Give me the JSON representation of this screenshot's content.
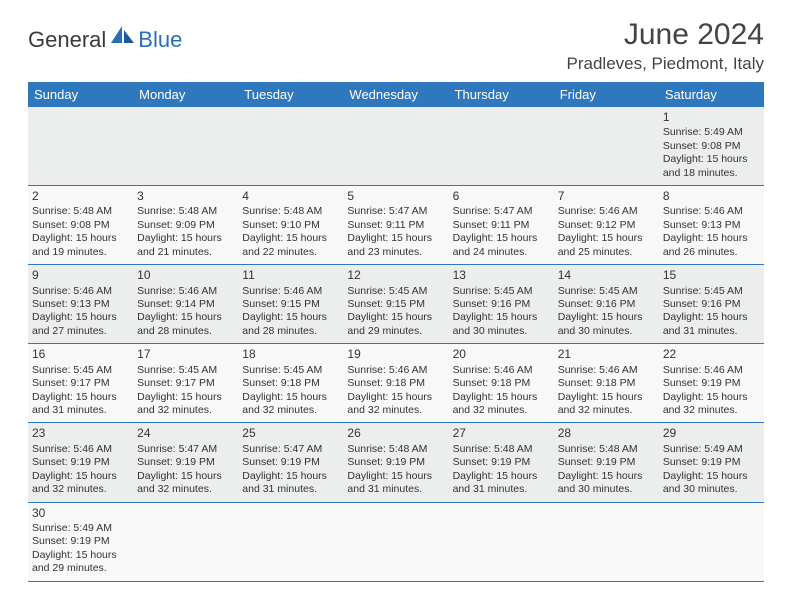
{
  "brand": {
    "part1": "General",
    "part2": "Blue"
  },
  "title": "June 2024",
  "location": "Pradleves, Piedmont, Italy",
  "colors": {
    "header_bg": "#2f78bd",
    "header_fg": "#ffffff",
    "row_a": "#eceded",
    "row_b": "#f8f8f8",
    "divider": "#2f78bd",
    "brand_blue": "#2770b8"
  },
  "weekdays": [
    "Sunday",
    "Monday",
    "Tuesday",
    "Wednesday",
    "Thursday",
    "Friday",
    "Saturday"
  ],
  "weeks": [
    [
      null,
      null,
      null,
      null,
      null,
      null,
      {
        "day": "1",
        "sunrise": "Sunrise: 5:49 AM",
        "sunset": "Sunset: 9:08 PM",
        "daylight1": "Daylight: 15 hours",
        "daylight2": "and 18 minutes."
      }
    ],
    [
      {
        "day": "2",
        "sunrise": "Sunrise: 5:48 AM",
        "sunset": "Sunset: 9:08 PM",
        "daylight1": "Daylight: 15 hours",
        "daylight2": "and 19 minutes."
      },
      {
        "day": "3",
        "sunrise": "Sunrise: 5:48 AM",
        "sunset": "Sunset: 9:09 PM",
        "daylight1": "Daylight: 15 hours",
        "daylight2": "and 21 minutes."
      },
      {
        "day": "4",
        "sunrise": "Sunrise: 5:48 AM",
        "sunset": "Sunset: 9:10 PM",
        "daylight1": "Daylight: 15 hours",
        "daylight2": "and 22 minutes."
      },
      {
        "day": "5",
        "sunrise": "Sunrise: 5:47 AM",
        "sunset": "Sunset: 9:11 PM",
        "daylight1": "Daylight: 15 hours",
        "daylight2": "and 23 minutes."
      },
      {
        "day": "6",
        "sunrise": "Sunrise: 5:47 AM",
        "sunset": "Sunset: 9:11 PM",
        "daylight1": "Daylight: 15 hours",
        "daylight2": "and 24 minutes."
      },
      {
        "day": "7",
        "sunrise": "Sunrise: 5:46 AM",
        "sunset": "Sunset: 9:12 PM",
        "daylight1": "Daylight: 15 hours",
        "daylight2": "and 25 minutes."
      },
      {
        "day": "8",
        "sunrise": "Sunrise: 5:46 AM",
        "sunset": "Sunset: 9:13 PM",
        "daylight1": "Daylight: 15 hours",
        "daylight2": "and 26 minutes."
      }
    ],
    [
      {
        "day": "9",
        "sunrise": "Sunrise: 5:46 AM",
        "sunset": "Sunset: 9:13 PM",
        "daylight1": "Daylight: 15 hours",
        "daylight2": "and 27 minutes."
      },
      {
        "day": "10",
        "sunrise": "Sunrise: 5:46 AM",
        "sunset": "Sunset: 9:14 PM",
        "daylight1": "Daylight: 15 hours",
        "daylight2": "and 28 minutes."
      },
      {
        "day": "11",
        "sunrise": "Sunrise: 5:46 AM",
        "sunset": "Sunset: 9:15 PM",
        "daylight1": "Daylight: 15 hours",
        "daylight2": "and 28 minutes."
      },
      {
        "day": "12",
        "sunrise": "Sunrise: 5:45 AM",
        "sunset": "Sunset: 9:15 PM",
        "daylight1": "Daylight: 15 hours",
        "daylight2": "and 29 minutes."
      },
      {
        "day": "13",
        "sunrise": "Sunrise: 5:45 AM",
        "sunset": "Sunset: 9:16 PM",
        "daylight1": "Daylight: 15 hours",
        "daylight2": "and 30 minutes."
      },
      {
        "day": "14",
        "sunrise": "Sunrise: 5:45 AM",
        "sunset": "Sunset: 9:16 PM",
        "daylight1": "Daylight: 15 hours",
        "daylight2": "and 30 minutes."
      },
      {
        "day": "15",
        "sunrise": "Sunrise: 5:45 AM",
        "sunset": "Sunset: 9:16 PM",
        "daylight1": "Daylight: 15 hours",
        "daylight2": "and 31 minutes."
      }
    ],
    [
      {
        "day": "16",
        "sunrise": "Sunrise: 5:45 AM",
        "sunset": "Sunset: 9:17 PM",
        "daylight1": "Daylight: 15 hours",
        "daylight2": "and 31 minutes."
      },
      {
        "day": "17",
        "sunrise": "Sunrise: 5:45 AM",
        "sunset": "Sunset: 9:17 PM",
        "daylight1": "Daylight: 15 hours",
        "daylight2": "and 32 minutes."
      },
      {
        "day": "18",
        "sunrise": "Sunrise: 5:45 AM",
        "sunset": "Sunset: 9:18 PM",
        "daylight1": "Daylight: 15 hours",
        "daylight2": "and 32 minutes."
      },
      {
        "day": "19",
        "sunrise": "Sunrise: 5:46 AM",
        "sunset": "Sunset: 9:18 PM",
        "daylight1": "Daylight: 15 hours",
        "daylight2": "and 32 minutes."
      },
      {
        "day": "20",
        "sunrise": "Sunrise: 5:46 AM",
        "sunset": "Sunset: 9:18 PM",
        "daylight1": "Daylight: 15 hours",
        "daylight2": "and 32 minutes."
      },
      {
        "day": "21",
        "sunrise": "Sunrise: 5:46 AM",
        "sunset": "Sunset: 9:18 PM",
        "daylight1": "Daylight: 15 hours",
        "daylight2": "and 32 minutes."
      },
      {
        "day": "22",
        "sunrise": "Sunrise: 5:46 AM",
        "sunset": "Sunset: 9:19 PM",
        "daylight1": "Daylight: 15 hours",
        "daylight2": "and 32 minutes."
      }
    ],
    [
      {
        "day": "23",
        "sunrise": "Sunrise: 5:46 AM",
        "sunset": "Sunset: 9:19 PM",
        "daylight1": "Daylight: 15 hours",
        "daylight2": "and 32 minutes."
      },
      {
        "day": "24",
        "sunrise": "Sunrise: 5:47 AM",
        "sunset": "Sunset: 9:19 PM",
        "daylight1": "Daylight: 15 hours",
        "daylight2": "and 32 minutes."
      },
      {
        "day": "25",
        "sunrise": "Sunrise: 5:47 AM",
        "sunset": "Sunset: 9:19 PM",
        "daylight1": "Daylight: 15 hours",
        "daylight2": "and 31 minutes."
      },
      {
        "day": "26",
        "sunrise": "Sunrise: 5:48 AM",
        "sunset": "Sunset: 9:19 PM",
        "daylight1": "Daylight: 15 hours",
        "daylight2": "and 31 minutes."
      },
      {
        "day": "27",
        "sunrise": "Sunrise: 5:48 AM",
        "sunset": "Sunset: 9:19 PM",
        "daylight1": "Daylight: 15 hours",
        "daylight2": "and 31 minutes."
      },
      {
        "day": "28",
        "sunrise": "Sunrise: 5:48 AM",
        "sunset": "Sunset: 9:19 PM",
        "daylight1": "Daylight: 15 hours",
        "daylight2": "and 30 minutes."
      },
      {
        "day": "29",
        "sunrise": "Sunrise: 5:49 AM",
        "sunset": "Sunset: 9:19 PM",
        "daylight1": "Daylight: 15 hours",
        "daylight2": "and 30 minutes."
      }
    ],
    [
      {
        "day": "30",
        "sunrise": "Sunrise: 5:49 AM",
        "sunset": "Sunset: 9:19 PM",
        "daylight1": "Daylight: 15 hours",
        "daylight2": "and 29 minutes."
      },
      null,
      null,
      null,
      null,
      null,
      null
    ]
  ]
}
